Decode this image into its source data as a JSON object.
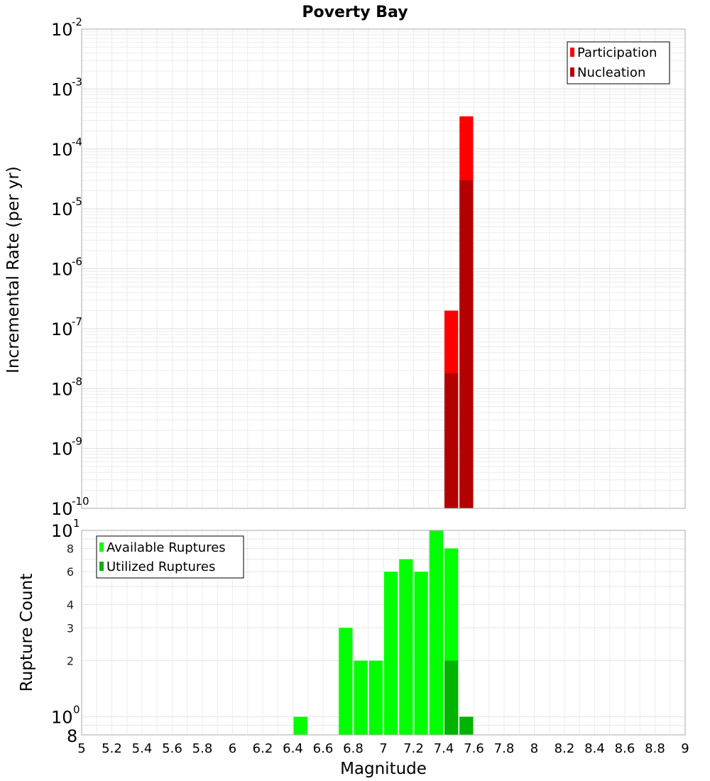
{
  "chart_data": [
    {
      "type": "bar",
      "title": "Poverty Bay",
      "ylabel": "Incremental Rate (per yr)",
      "xlabel": "",
      "y_scale": "log",
      "ylim": [
        1e-10,
        0.01
      ],
      "xlim": [
        5,
        9
      ],
      "bin_width": 0.1,
      "y_ticks": [
        {
          "base": "10",
          "exp": "-10",
          "value": 1e-10
        },
        {
          "base": "10",
          "exp": "-9",
          "value": 1e-09
        },
        {
          "base": "10",
          "exp": "-8",
          "value": 1e-08
        },
        {
          "base": "10",
          "exp": "-7",
          "value": 1e-07
        },
        {
          "base": "10",
          "exp": "-6",
          "value": 1e-06
        },
        {
          "base": "10",
          "exp": "-5",
          "value": 1e-05
        },
        {
          "base": "10",
          "exp": "-4",
          "value": 0.0001
        },
        {
          "base": "10",
          "exp": "-3",
          "value": 0.001
        },
        {
          "base": "10",
          "exp": "-2",
          "value": 0.01
        }
      ],
      "legend_position": "top-right",
      "grid": true,
      "series": [
        {
          "name": "Participation",
          "color": "#ff0000",
          "x": [
            7.45,
            7.55
          ],
          "values": [
            2e-07,
            0.00035
          ]
        },
        {
          "name": "Nucleation",
          "color": "#b30000",
          "x": [
            7.45,
            7.55
          ],
          "values": [
            1.8e-08,
            3e-05
          ]
        }
      ]
    },
    {
      "type": "bar",
      "title": "",
      "ylabel": "Rupture Count",
      "xlabel": "Magnitude",
      "y_scale": "log",
      "ylim": [
        0.8,
        10
      ],
      "xlim": [
        5,
        9
      ],
      "bin_width": 0.1,
      "x_ticks": [
        "5",
        "5.2",
        "5.4",
        "5.6",
        "5.8",
        "6",
        "6.2",
        "6.4",
        "6.6",
        "6.8",
        "7",
        "7.2",
        "7.4",
        "7.6",
        "7.8",
        "8",
        "8.2",
        "8.4",
        "8.6",
        "8.8",
        "9"
      ],
      "y_ticks_big": [
        {
          "base": "10",
          "exp": "0",
          "value": 1
        },
        {
          "base": "10",
          "exp": "1",
          "value": 10
        }
      ],
      "y_ticks_small": [
        {
          "label": "2",
          "value": 2
        },
        {
          "label": "3",
          "value": 3
        },
        {
          "label": "4",
          "value": 4
        },
        {
          "label": "6",
          "value": 6
        },
        {
          "label": "8",
          "value": 8
        }
      ],
      "y_tick_bottom": {
        "label": "8",
        "value": 0.8
      },
      "legend_position": "top-left",
      "grid": true,
      "series": [
        {
          "name": "Available Ruptures",
          "color": "#00ff00",
          "x": [
            6.45,
            6.75,
            6.85,
            6.95,
            7.05,
            7.15,
            7.25,
            7.35,
            7.45,
            7.55
          ],
          "values": [
            1,
            3,
            2,
            2,
            6,
            7,
            6,
            10,
            8,
            1
          ]
        },
        {
          "name": "Utilized Ruptures",
          "color": "#00b300",
          "x": [
            7.45,
            7.55
          ],
          "values": [
            2,
            1
          ]
        }
      ]
    }
  ]
}
